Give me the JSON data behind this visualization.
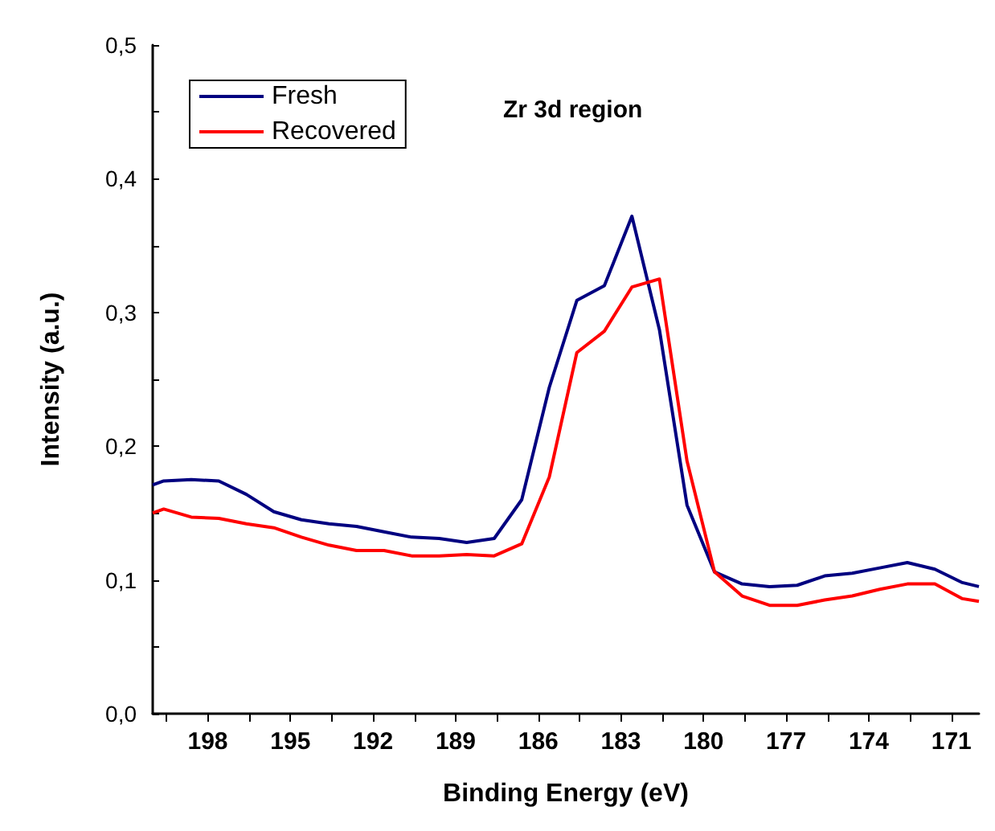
{
  "chart_data": {
    "type": "line",
    "title": "Zr 3d region",
    "xlabel": "Binding Energy (eV)",
    "ylabel": "Intensity (a.u.)",
    "x": [
      200,
      199.6,
      198.6,
      197.6,
      196.6,
      195.6,
      194.6,
      193.6,
      192.6,
      191.6,
      190.6,
      189.6,
      188.6,
      187.6,
      186.6,
      185.6,
      184.6,
      183.6,
      182.6,
      181.6,
      180.6,
      179.6,
      178.6,
      177.6,
      176.6,
      175.6,
      174.6,
      173.6,
      172.6,
      171.6,
      170.6,
      170
    ],
    "series": [
      {
        "name": "Fresh",
        "color": "#000080",
        "values": [
          0.171,
          0.174,
          0.175,
          0.174,
          0.164,
          0.151,
          0.145,
          0.142,
          0.14,
          0.136,
          0.132,
          0.131,
          0.128,
          0.131,
          0.16,
          0.244,
          0.309,
          0.32,
          0.372,
          0.287,
          0.156,
          0.106,
          0.097,
          0.095,
          0.096,
          0.103,
          0.105,
          0.109,
          0.113,
          0.108,
          0.098,
          0.095
        ]
      },
      {
        "name": "Recovered",
        "color": "#ff0000",
        "values": [
          0.15,
          0.153,
          0.147,
          0.146,
          0.142,
          0.139,
          0.132,
          0.126,
          0.122,
          0.122,
          0.118,
          0.118,
          0.119,
          0.118,
          0.127,
          0.177,
          0.27,
          0.286,
          0.319,
          0.325,
          0.189,
          0.106,
          0.088,
          0.081,
          0.081,
          0.085,
          0.088,
          0.093,
          0.097,
          0.097,
          0.086,
          0.084
        ]
      }
    ],
    "xlim": [
      200,
      170
    ],
    "xticks": [
      {
        "value": 199.5,
        "label": null
      },
      198,
      {
        "value": 196.5,
        "label": null
      },
      195,
      {
        "value": 193.5,
        "label": null
      },
      192,
      {
        "value": 190.5,
        "label": null
      },
      189,
      {
        "value": 187.5,
        "label": null
      },
      186,
      {
        "value": 184.5,
        "label": null
      },
      183,
      {
        "value": 181.5,
        "label": null
      },
      180,
      {
        "value": 178.5,
        "label": null
      },
      177,
      {
        "value": 175.5,
        "label": null
      },
      174,
      {
        "value": 172.5,
        "label": null
      },
      171
    ],
    "ylim": [
      0,
      0.5
    ],
    "yticks": [
      {
        "value": 0,
        "label": "0,0"
      },
      {
        "value": 0.05,
        "label": null
      },
      {
        "value": 0.1,
        "label": "0,1"
      },
      {
        "value": 0.15,
        "label": null
      },
      {
        "value": 0.2,
        "label": "0,2"
      },
      {
        "value": 0.25,
        "label": null
      },
      {
        "value": 0.3,
        "label": "0,3"
      },
      {
        "value": 0.35,
        "label": null
      },
      {
        "value": 0.4,
        "label": "0,4"
      },
      {
        "value": 0.45,
        "label": null
      },
      {
        "value": 0.5,
        "label": "0,5"
      }
    ],
    "grid": false,
    "legend": "top left",
    "marker": "none",
    "line_style": "solid"
  }
}
